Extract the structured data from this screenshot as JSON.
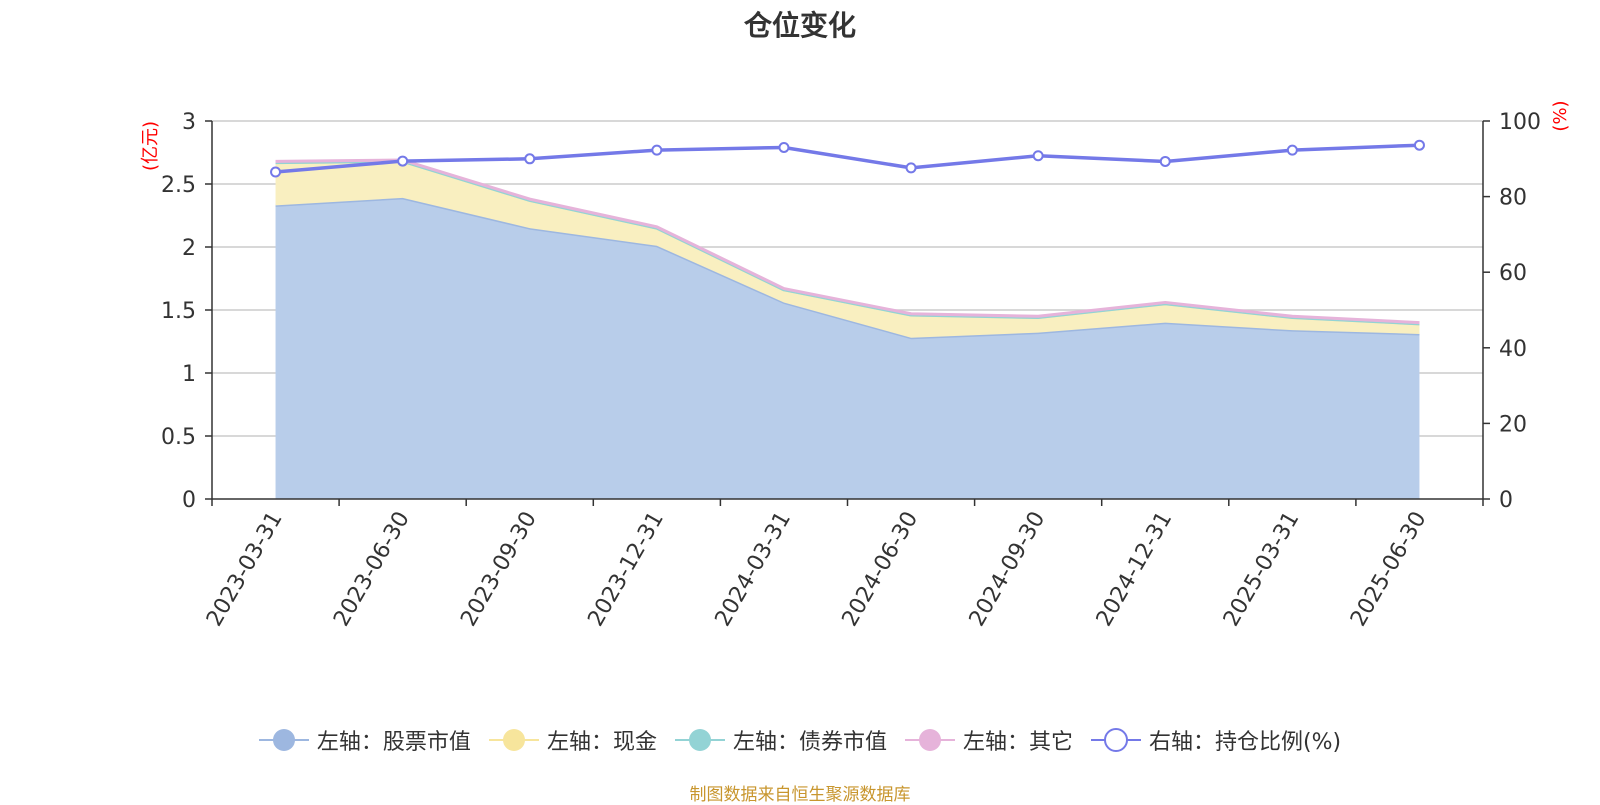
{
  "chart_data": {
    "type": "area",
    "title": "仓位变化",
    "categories": [
      "2023-03-31",
      "2023-06-30",
      "2023-09-30",
      "2023-12-31",
      "2024-03-31",
      "2024-06-30",
      "2024-09-30",
      "2024-12-31",
      "2025-03-31",
      "2025-06-30"
    ],
    "left_axis": {
      "unit_label": "(亿元)",
      "ylim": [
        0,
        3
      ],
      "ticks": [
        "0",
        "0.5",
        "1",
        "1.5",
        "2",
        "2.5",
        "3"
      ]
    },
    "right_axis": {
      "unit_label": "(%)",
      "ylim": [
        0,
        100
      ],
      "ticks": [
        "0",
        "20",
        "40",
        "60",
        "80",
        "100"
      ]
    },
    "series": [
      {
        "name": "左轴：股票市值",
        "axis": "left",
        "kind": "area",
        "color": "#9db7e0",
        "fill": "#b8cdea",
        "values": [
          2.33,
          2.39,
          2.15,
          2.01,
          1.56,
          1.28,
          1.32,
          1.4,
          1.34,
          1.31
        ]
      },
      {
        "name": "左轴：现金",
        "axis": "left",
        "kind": "area",
        "color": "#f7e59c",
        "fill": "#f9efc0",
        "values": [
          0.34,
          0.29,
          0.22,
          0.14,
          0.1,
          0.18,
          0.12,
          0.15,
          0.1,
          0.08
        ]
      },
      {
        "name": "左轴：债券市值",
        "axis": "left",
        "kind": "area",
        "color": "#93d3d5",
        "fill": "#b6e4e5",
        "values": [
          0,
          0,
          0,
          0,
          0,
          0,
          0,
          0,
          0,
          0
        ]
      },
      {
        "name": "左轴：其它",
        "axis": "left",
        "kind": "area",
        "color": "#e6b3da",
        "fill": "#f0d2ea",
        "values": [
          0.01,
          0.01,
          0.01,
          0.01,
          0.01,
          0.01,
          0.01,
          0.01,
          0.01,
          0.01
        ]
      },
      {
        "name": "右轴：持仓比例(%)",
        "axis": "right",
        "kind": "line",
        "color": "#7479e8",
        "values": [
          86.5,
          89.4,
          90.0,
          92.3,
          93.0,
          87.6,
          90.8,
          89.3,
          92.3,
          93.6
        ]
      }
    ],
    "grid": true,
    "legend_position": "bottom-center"
  },
  "footer": "制图数据来自恒生聚源数据库"
}
